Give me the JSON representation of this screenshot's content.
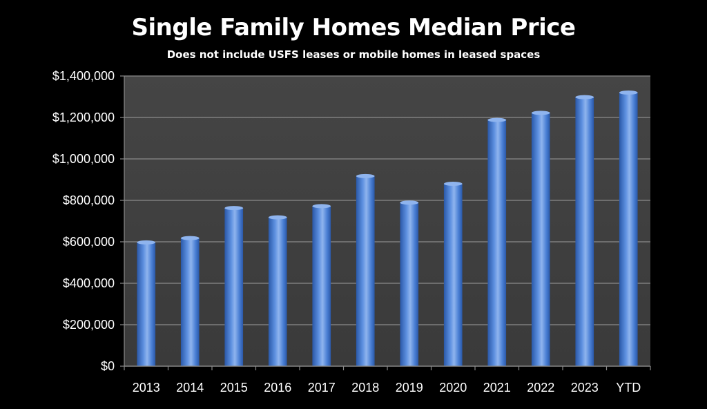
{
  "chart_data": {
    "type": "bar",
    "title": "Single Family Homes Median Price",
    "subtitle": "Does not include USFS leases or mobile homes in leased spaces",
    "xlabel": "",
    "ylabel": "",
    "categories": [
      "2013",
      "2014",
      "2015",
      "2016",
      "2017",
      "2018",
      "2019",
      "2020",
      "2021",
      "2022",
      "2023",
      "YTD"
    ],
    "values": [
      597000,
      618000,
      763000,
      718000,
      772000,
      917000,
      789000,
      880000,
      1188000,
      1222000,
      1298000,
      1320000
    ],
    "ylim": [
      0,
      1400000
    ],
    "yticks": [
      0,
      200000,
      400000,
      600000,
      800000,
      1000000,
      1200000,
      1400000
    ],
    "ytick_labels": [
      "$0",
      "$200,000",
      "$400,000",
      "$600,000",
      "$800,000",
      "$1,000,000",
      "$1,200,000",
      "$1,400,000"
    ],
    "grid": true,
    "legend": "none",
    "colors": {
      "background": "#000000",
      "plot_area": "#404040",
      "bar": "#4a7fd4",
      "bar_highlight": "#8fb4ee",
      "bar_shadow": "#2a58a8",
      "grid": "#8a8a8a",
      "text": "#ffffff"
    }
  }
}
